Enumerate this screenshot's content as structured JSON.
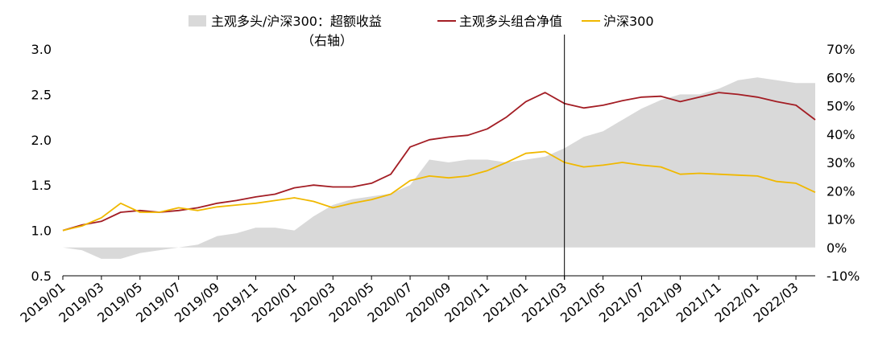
{
  "chart_data": {
    "type": "line",
    "legend": {
      "position": "top",
      "excess_label": "主观多头/沪深300：超额收益",
      "excess_sub": "（右轴）",
      "active_label": "主观多头组合净值",
      "csi_label": "沪深300"
    },
    "colors": {
      "excess": "#d9d9d9",
      "active": "#a31d24",
      "csi": "#f0b800",
      "axis": "#000000"
    },
    "left_axis": {
      "min": 0.5,
      "max": 3.0,
      "ticks": [
        "0.5",
        "1.0",
        "1.5",
        "2.0",
        "2.5",
        "3.0"
      ]
    },
    "right_axis": {
      "min": -10,
      "max": 70,
      "ticks": [
        "-10%",
        "0%",
        "10%",
        "20%",
        "30%",
        "40%",
        "50%",
        "60%",
        "70%"
      ]
    },
    "x_tick_labels": [
      "2019/01",
      "2019/03",
      "2019/05",
      "2019/07",
      "2019/09",
      "2019/11",
      "2020/01",
      "2020/03",
      "2020/05",
      "2020/07",
      "2020/09",
      "2020/11",
      "2021/01",
      "2021/03",
      "2021/05",
      "2021/07",
      "2021/09",
      "2021/11",
      "2022/01",
      "2022/03"
    ],
    "vertical_marker": "2021/03",
    "x": [
      "2019/01",
      "2019/02",
      "2019/03",
      "2019/04",
      "2019/05",
      "2019/06",
      "2019/07",
      "2019/08",
      "2019/09",
      "2019/10",
      "2019/11",
      "2019/12",
      "2020/01",
      "2020/02",
      "2020/03",
      "2020/04",
      "2020/05",
      "2020/06",
      "2020/07",
      "2020/08",
      "2020/09",
      "2020/10",
      "2020/11",
      "2020/12",
      "2021/01",
      "2021/02",
      "2021/03",
      "2021/04",
      "2021/05",
      "2021/06",
      "2021/07",
      "2021/08",
      "2021/09",
      "2021/10",
      "2021/11",
      "2021/12",
      "2022/01",
      "2022/02",
      "2022/03",
      "2022/04"
    ],
    "series": [
      {
        "name": "主观多头/沪深300：超额收益",
        "axis": "right",
        "type": "area",
        "values": [
          0,
          -1,
          -4,
          -4,
          -2,
          -1,
          0,
          1,
          4,
          5,
          7,
          7,
          6,
          11,
          15,
          17,
          18,
          19,
          22,
          31,
          30,
          31,
          31,
          30,
          31,
          32,
          35,
          39,
          41,
          45,
          49,
          52,
          54,
          54,
          56,
          59,
          60,
          59,
          58,
          58
        ]
      },
      {
        "name": "主观多头组合净值",
        "axis": "left",
        "type": "line",
        "values": [
          1.0,
          1.06,
          1.1,
          1.2,
          1.22,
          1.2,
          1.22,
          1.25,
          1.3,
          1.33,
          1.37,
          1.4,
          1.47,
          1.5,
          1.48,
          1.48,
          1.52,
          1.62,
          1.92,
          2.0,
          2.03,
          2.05,
          2.12,
          2.25,
          2.42,
          2.52,
          2.4,
          2.35,
          2.38,
          2.43,
          2.47,
          2.48,
          2.42,
          2.47,
          2.52,
          2.5,
          2.47,
          2.42,
          2.38,
          2.22
        ]
      },
      {
        "name": "沪深300",
        "axis": "left",
        "type": "line",
        "values": [
          1.0,
          1.05,
          1.14,
          1.3,
          1.2,
          1.2,
          1.25,
          1.22,
          1.26,
          1.28,
          1.3,
          1.33,
          1.36,
          1.32,
          1.25,
          1.3,
          1.34,
          1.4,
          1.55,
          1.6,
          1.58,
          1.6,
          1.66,
          1.75,
          1.85,
          1.87,
          1.75,
          1.7,
          1.72,
          1.75,
          1.72,
          1.7,
          1.62,
          1.63,
          1.62,
          1.61,
          1.6,
          1.54,
          1.52,
          1.42
        ]
      }
    ]
  }
}
